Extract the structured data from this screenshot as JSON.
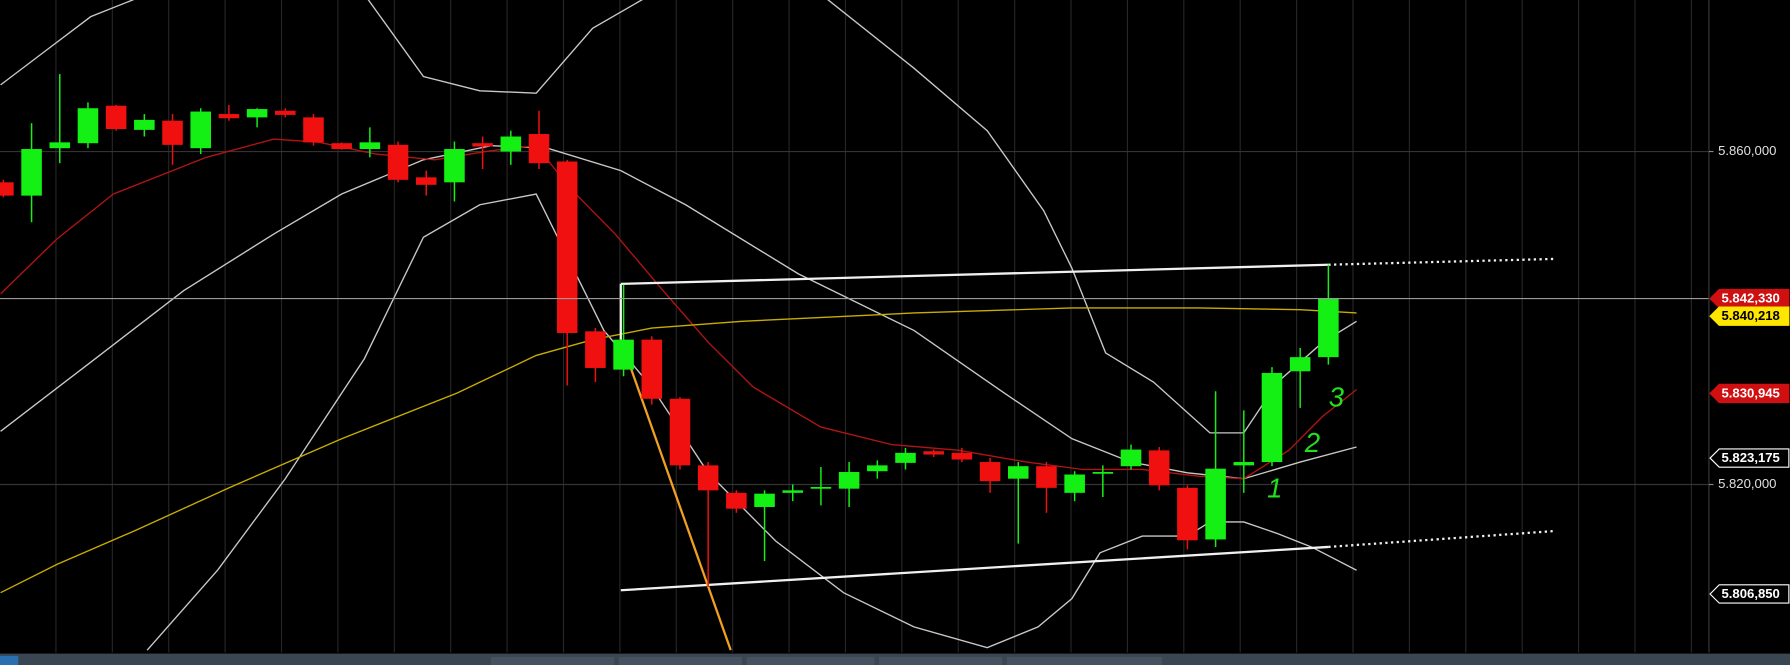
{
  "chart_data": {
    "type": "candlestick",
    "up_color": "#14f014",
    "down_color": "#f01010",
    "grid": true,
    "xlim": [
      -0.12,
      60.5
    ],
    "ylim": [
      5800.1,
      5878.2
    ],
    "yticks": [
      {
        "value": 5860,
        "label": "5.860,000"
      },
      {
        "value": 5820,
        "label": "5.820,000"
      }
    ],
    "x": [
      0,
      1,
      2,
      3,
      4,
      5,
      6,
      7,
      8,
      9,
      10,
      11,
      12,
      13,
      14,
      15,
      16,
      17,
      18,
      19,
      20,
      21,
      22,
      23,
      24,
      25,
      26,
      27,
      28,
      29,
      30,
      31,
      32,
      33,
      34,
      35,
      36,
      37,
      38,
      39,
      40,
      41,
      42,
      43,
      44,
      45,
      46,
      47
    ],
    "open": [
      5856.3,
      5854.7,
      5860.4,
      5861.0,
      5865.5,
      5862.6,
      5863.7,
      5860.4,
      5864.5,
      5864.1,
      5864.9,
      5864.1,
      5861.0,
      5860.3,
      5860.8,
      5856.9,
      5856.3,
      5861.0,
      5860.0,
      5862.1,
      5858.8,
      5838.4,
      5833.8,
      5837.4,
      5830.3,
      5822.3,
      5819.0,
      5817.3,
      5819.0,
      5819.6,
      5819.5,
      5821.6,
      5822.6,
      5824.0,
      5823.8,
      5822.7,
      5820.7,
      5822.2,
      5819.0,
      5821.4,
      5822.2,
      5824.1,
      5819.6,
      5813.4,
      5822.3,
      5822.7,
      5833.6,
      5835.3
    ],
    "high": [
      5856.6,
      5863.4,
      5869.3,
      5865.9,
      5865.6,
      5864.5,
      5864.5,
      5865.2,
      5865.6,
      5865.2,
      5865.2,
      5864.5,
      5861.1,
      5862.9,
      5861.2,
      5857.7,
      5861.2,
      5861.8,
      5862.5,
      5864.9,
      5859.0,
      5838.8,
      5844.0,
      5837.8,
      5830.5,
      5822.7,
      5819.3,
      5819.3,
      5820.0,
      5822.1,
      5822.7,
      5822.9,
      5824.4,
      5824.2,
      5824.4,
      5823.2,
      5822.7,
      5822.7,
      5821.6,
      5822.3,
      5824.8,
      5824.5,
      5819.9,
      5831.2,
      5828.9,
      5834.1,
      5836.4,
      5846.4
    ],
    "low": [
      5854.5,
      5851.5,
      5858.6,
      5860.4,
      5862.5,
      5861.8,
      5858.4,
      5859.7,
      5863.7,
      5862.9,
      5864.1,
      5860.7,
      5860.2,
      5859.3,
      5856.3,
      5854.7,
      5854.0,
      5857.9,
      5858.4,
      5857.9,
      5831.9,
      5832.3,
      5833.0,
      5829.6,
      5821.8,
      5807.7,
      5816.6,
      5810.8,
      5818.0,
      5817.5,
      5817.3,
      5820.7,
      5821.8,
      5823.3,
      5822.7,
      5819.0,
      5812.9,
      5816.6,
      5818.0,
      5818.5,
      5821.8,
      5819.3,
      5812.2,
      5812.5,
      5819.0,
      5822.2,
      5829.2,
      5834.4
    ],
    "close": [
      5854.7,
      5860.3,
      5861.1,
      5865.2,
      5862.7,
      5863.8,
      5860.8,
      5864.8,
      5864.0,
      5865.1,
      5864.4,
      5861.1,
      5860.3,
      5861.1,
      5856.6,
      5856.0,
      5860.3,
      5860.6,
      5861.8,
      5858.6,
      5838.2,
      5834.0,
      5837.4,
      5830.3,
      5822.3,
      5819.3,
      5817.1,
      5818.9,
      5819.3,
      5819.7,
      5821.5,
      5822.3,
      5823.8,
      5823.6,
      5823.0,
      5820.4,
      5822.2,
      5819.6,
      5821.2,
      5821.5,
      5824.2,
      5819.9,
      5813.3,
      5821.9,
      5822.7,
      5833.4,
      5835.3,
      5842.3
    ],
    "overlays": [
      {
        "color": "#c8c8c8",
        "x": [
          -0.1,
          1.5,
          3.1,
          5.1,
          12.8,
          14.9,
          16.9,
          18.9,
          20.9,
          23.0,
          29.0,
          32.3,
          34.9,
          36.9,
          37.9,
          39.1,
          40.8,
          42.8,
          44.0,
          45.2,
          46.8,
          48.0
        ],
        "values": [
          5868.0,
          5872.1,
          5876.2,
          5878.9,
          5878.9,
          5869.0,
          5867.3,
          5867.0,
          5874.8,
          5878.9,
          5878.9,
          5870.0,
          5862.5,
          5852.9,
          5846.0,
          5835.8,
          5832.3,
          5826.2,
          5826.2,
          5832.3,
          5837.1,
          5839.6
        ]
      },
      {
        "color": "#c8c8c8",
        "x": [
          -0.1,
          3.1,
          6.4,
          9.6,
          12.0,
          14.9,
          17.3,
          19.3,
          21.9,
          24.2,
          28.2,
          32.3,
          35.5,
          37.9,
          40.0,
          42.0,
          44.0,
          46.0,
          48.0
        ],
        "values": [
          5826.4,
          5834.7,
          5843.3,
          5850.1,
          5854.9,
          5859.0,
          5860.7,
          5860.4,
          5857.7,
          5853.6,
          5845.3,
          5838.5,
          5831.0,
          5825.5,
          5822.7,
          5821.4,
          5820.7,
          5822.7,
          5824.5
        ]
      },
      {
        "color": "#c8c8c8",
        "x": [
          5.1,
          7.6,
          10.0,
          12.8,
          14.9,
          16.9,
          18.9,
          20.1,
          21.3,
          23.0,
          25.0,
          27.4,
          29.8,
          32.3,
          34.9,
          36.7,
          37.9,
          38.9,
          40.4,
          42.0,
          42.8,
          44.0,
          45.2,
          46.4,
          48.0
        ],
        "values": [
          5800.1,
          5809.7,
          5820.7,
          5835.1,
          5849.7,
          5853.6,
          5854.9,
          5846.7,
          5838.5,
          5831.7,
          5821.4,
          5813.2,
          5807.0,
          5802.9,
          5800.4,
          5802.9,
          5806.3,
          5811.8,
          5813.8,
          5813.8,
          5815.5,
          5815.5,
          5814.1,
          5812.5,
          5809.7
        ]
      },
      {
        "color": "#b01414",
        "x": [
          -0.1,
          1.9,
          3.9,
          7.2,
          9.6,
          11.2,
          13.2,
          15.3,
          17.3,
          18.9,
          20.1,
          21.7,
          23.4,
          25.0,
          26.6,
          29.0,
          31.5,
          33.9,
          36.3,
          38.3,
          40.4,
          42.4,
          44.0,
          45.6,
          46.8,
          48.0
        ],
        "values": [
          5842.9,
          5849.5,
          5854.9,
          5859.3,
          5861.5,
          5861.1,
          5859.7,
          5859.0,
          5860.1,
          5860.7,
          5855.6,
          5850.1,
          5843.3,
          5837.1,
          5831.7,
          5826.9,
          5824.8,
          5824.1,
          5822.7,
          5821.8,
          5821.8,
          5821.0,
          5820.7,
          5824.1,
          5828.2,
          5831.4
        ]
      },
      {
        "color": "#c8ac00",
        "x": [
          -0.1,
          1.9,
          4.7,
          8.0,
          12.0,
          16.1,
          18.9,
          20.9,
          23.0,
          26.2,
          32.3,
          37.9,
          42.4,
          46.0,
          48.0
        ],
        "values": [
          5807.0,
          5810.4,
          5814.5,
          5819.6,
          5825.5,
          5831.0,
          5835.5,
          5837.4,
          5838.8,
          5839.6,
          5840.6,
          5841.2,
          5841.2,
          5841.0,
          5840.6
        ]
      }
    ],
    "trendlines": [
      {
        "color": "#f0f0f0",
        "style": "solid",
        "x": [
          21.9,
          47.0
        ],
        "values": [
          5844.1,
          5846.4
        ]
      },
      {
        "color": "#f0f0f0",
        "style": "dotted",
        "x": [
          47.0,
          55.0
        ],
        "values": [
          5846.4,
          5847.1
        ]
      },
      {
        "color": "#f0f0f0",
        "style": "solid",
        "x": [
          21.9,
          47.0
        ],
        "values": [
          5807.3,
          5812.5
        ]
      },
      {
        "color": "#f0f0f0",
        "style": "dotted",
        "x": [
          47.0,
          55.0
        ],
        "values": [
          5812.5,
          5814.4
        ]
      },
      {
        "color": "#f0f0f0",
        "style": "solid",
        "x": [
          21.9,
          21.9
        ],
        "values": [
          5844.1,
          5837.4
        ]
      },
      {
        "color": "#f0a020",
        "style": "solid",
        "x": [
          21.9,
          25.8
        ],
        "values": [
          5837.4,
          5800.1
        ]
      }
    ],
    "price_tags": [
      {
        "value": 5842.33,
        "label": "5.842,330",
        "color": "#d01010",
        "text_color": "#ffffff"
      },
      {
        "value": 5840.218,
        "label": "5.840,218",
        "color": "#ffe600",
        "text_color": "#000000"
      },
      {
        "value": 5830.945,
        "label": "5.830,945",
        "color": "#d01010",
        "text_color": "#ffffff"
      },
      {
        "value": 5823.175,
        "label": "5.823,175",
        "color": "#000000",
        "text_color": "#ffffff"
      },
      {
        "value": 5806.85,
        "label": "5.806,850",
        "color": "#000000",
        "text_color": "#ffffff"
      }
    ],
    "annotations": [
      "1",
      "2",
      "3"
    ]
  }
}
